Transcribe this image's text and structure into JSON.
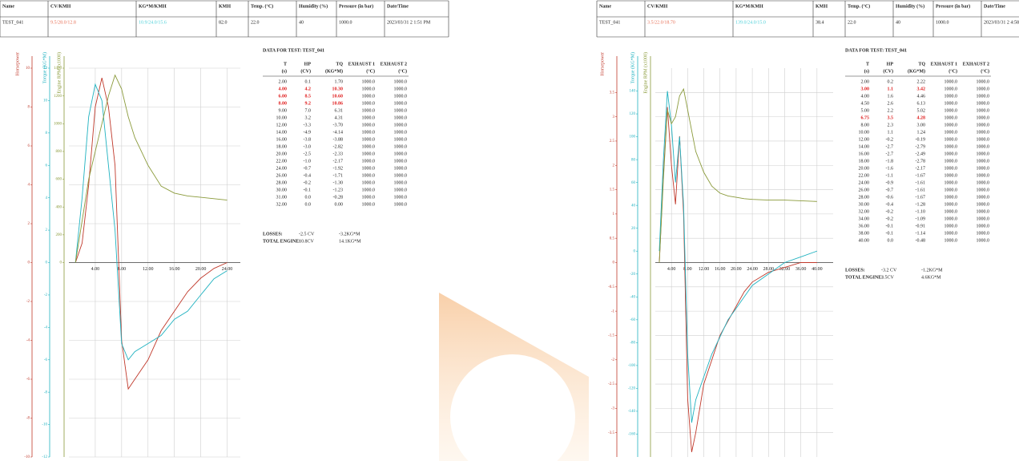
{
  "reports": [
    {
      "header": {
        "columns": [
          "Name",
          "CV/KMH",
          "KG*M/KMH",
          "KMH",
          "Temp. (°C)",
          "Humidity (%)",
          "Pressure (in bar)",
          "Date/Time"
        ],
        "values": [
          "TEST_041",
          "9.5/28.0/12.8",
          "10.9/24.0/15.6",
          "82.0",
          "22.0",
          "40",
          "1000.0",
          "2023/03/31 2 1:51 PM"
        ],
        "colored_values": [
          {
            "index": 1,
            "color": "#e8735a"
          },
          {
            "index": 2,
            "color": "#4fd1d9"
          }
        ]
      },
      "table": {
        "title": "DATA FOR TEST: TEST_041",
        "headers": [
          [
            "T",
            "(s)"
          ],
          [
            "HP",
            "(CV)"
          ],
          [
            "TQ",
            "(KG*M)"
          ],
          [
            "EXHAUST 1",
            "(°C)"
          ],
          [
            "EXHAUST 2",
            "(°C)"
          ]
        ],
        "rows": [
          [
            "2.00",
            "0.1",
            "1.70",
            "1000.0",
            "1000.0"
          ],
          [
            "4.00",
            "4.2",
            "10.30",
            "1000.0",
            "1000.0"
          ],
          [
            "6.00",
            "8.5",
            "10.60",
            "1000.0",
            "1000.0"
          ],
          [
            "8.00",
            "9.2",
            "10.86",
            "1000.0",
            "1000.0"
          ],
          [
            "9.00",
            "7.0",
            "6.31",
            "1000.0",
            "1000.0"
          ],
          [
            "10.00",
            "3.2",
            "4.31",
            "1000.0",
            "1000.0"
          ],
          [
            "12.00",
            "-3.3",
            "-3.70",
            "1000.0",
            "1000.0"
          ],
          [
            "14.00",
            "-4.9",
            "-4.14",
            "1000.0",
            "1000.0"
          ],
          [
            "16.00",
            "-3.8",
            "-3.88",
            "1000.0",
            "1000.0"
          ],
          [
            "18.00",
            "-3.0",
            "-2.82",
            "1000.0",
            "1000.0"
          ],
          [
            "20.00",
            "-2.5",
            "-2.33",
            "1000.0",
            "1000.0"
          ],
          [
            "22.00",
            "-1.0",
            "-2.17",
            "1000.0",
            "1000.0"
          ],
          [
            "24.00",
            "-0.7",
            "-1.92",
            "1000.0",
            "1000.0"
          ],
          [
            "26.00",
            "-0.4",
            "-1.71",
            "1000.0",
            "1000.0"
          ],
          [
            "28.00",
            "-0.2",
            "-1.30",
            "1000.0",
            "1000.0"
          ],
          [
            "30.00",
            "-0.1",
            "-1.23",
            "1000.0",
            "1000.0"
          ],
          [
            "31.00",
            "0.0",
            "-0.28",
            "1000.0",
            "1000.0"
          ],
          [
            "32.00",
            "0.0",
            "0.00",
            "1000.0",
            "1000.0"
          ]
        ],
        "highlight_rows": [
          1,
          2,
          3
        ],
        "highlight_color": "#e02020"
      },
      "summary": [
        [
          "LOSSES:",
          "-2.5 CV",
          "-3.2KG*M"
        ],
        [
          "TOTAL ENGINE:",
          "10.8CV",
          "14.1KG*M"
        ]
      ]
    },
    {
      "header": {
        "columns": [
          "Name",
          "CV/KMH",
          "KG*M/KMH",
          "KMH",
          "Temp. (°C)",
          "Humidity (%)",
          "Pressure (in bar)",
          "Date/Time"
        ],
        "values": [
          "TEST_041",
          "3.5/22.0/18.70",
          "139.0/24.0/15.0",
          "38.4",
          "22.0",
          "40",
          "1000.0",
          "2023/03/31 2 4:58 PM"
        ],
        "colored_values": [
          {
            "index": 1,
            "color": "#e8735a"
          },
          {
            "index": 2,
            "color": "#4fd1d9"
          }
        ]
      },
      "table": {
        "title": "DATA FOR TEST: TEST_041",
        "headers": [
          [
            "T",
            "(s)"
          ],
          [
            "HP",
            "(CV)"
          ],
          [
            "TQ",
            "(KG*M)"
          ],
          [
            "EXHAUST 1",
            "(°C)"
          ],
          [
            "EXHAUST 2",
            "(°C)"
          ]
        ],
        "rows": [
          [
            "2.00",
            "0.2",
            "2.22",
            "1000.0",
            "1000.0"
          ],
          [
            "3.00",
            "1.1",
            "3.42",
            "1000.0",
            "1000.0"
          ],
          [
            "4.00",
            "1.6",
            "4.46",
            "1000.0",
            "1000.0"
          ],
          [
            "4.50",
            "2.6",
            "6.13",
            "1000.0",
            "1000.0"
          ],
          [
            "5.00",
            "2.2",
            "5.02",
            "1000.0",
            "1000.0"
          ],
          [
            "6.75",
            "3.5",
            "4.28",
            "1000.0",
            "1000.0"
          ],
          [
            "8.00",
            "2.3",
            "3.00",
            "1000.0",
            "1000.0"
          ],
          [
            "10.00",
            "1.1",
            "1.24",
            "1000.0",
            "1000.0"
          ],
          [
            "12.00",
            "-0.2",
            "-0.19",
            "1000.0",
            "1000.0"
          ],
          [
            "14.00",
            "-2.7",
            "-2.79",
            "1000.0",
            "1000.0"
          ],
          [
            "16.00",
            "-2.7",
            "-2.49",
            "1000.0",
            "1000.0"
          ],
          [
            "18.00",
            "-1.8",
            "-2.78",
            "1000.0",
            "1000.0"
          ],
          [
            "20.00",
            "-1.6",
            "-2.17",
            "1000.0",
            "1000.0"
          ],
          [
            "22.00",
            "-1.1",
            "-1.67",
            "1000.0",
            "1000.0"
          ],
          [
            "24.00",
            "-0.9",
            "-1.61",
            "1000.0",
            "1000.0"
          ],
          [
            "26.00",
            "-0.7",
            "-1.61",
            "1000.0",
            "1000.0"
          ],
          [
            "28.00",
            "-0.6",
            "-1.67",
            "1000.0",
            "1000.0"
          ],
          [
            "30.00",
            "-0.4",
            "-1.28",
            "1000.0",
            "1000.0"
          ],
          [
            "32.00",
            "-0.2",
            "-1.10",
            "1000.0",
            "1000.0"
          ],
          [
            "34.00",
            "-0.2",
            "-1.09",
            "1000.0",
            "1000.0"
          ],
          [
            "36.00",
            "-0.1",
            "-0.91",
            "1000.0",
            "1000.0"
          ],
          [
            "38.00",
            "-0.1",
            "-1.14",
            "1000.0",
            "1000.0"
          ],
          [
            "40.00",
            "0.0",
            "-0.48",
            "1000.0",
            "1000.0"
          ]
        ],
        "highlight_rows": [
          1,
          5
        ],
        "highlight_color": "#e02020"
      },
      "summary": [
        [
          "LOSSES:",
          "-3.2 CV",
          "-1.2KG*M"
        ],
        [
          "TOTAL ENGINE:",
          "3.5CV",
          "4.6KG*M"
        ]
      ]
    }
  ],
  "chart_data": [
    {
      "type": "line",
      "grid": true,
      "x": [
        1,
        2,
        3,
        4,
        5,
        6,
        7,
        8,
        9,
        10,
        12,
        14,
        16,
        18,
        20,
        22,
        24
      ],
      "xlim": [
        0,
        26
      ],
      "xticks": [
        {
          "value": 4,
          "label": "4.00"
        },
        {
          "value": 8,
          "label": "8.00"
        },
        {
          "value": 12,
          "label": "12.00"
        },
        {
          "value": 16,
          "label": "16.00"
        },
        {
          "value": 20,
          "label": "20.00"
        },
        {
          "value": 24,
          "label": "24.00"
        }
      ],
      "axes": [
        {
          "title": "Horsepower",
          "color": "#c0392b",
          "lim": [
            -10,
            10
          ],
          "ticks": [
            -10,
            -8,
            -6,
            -4,
            -2,
            0,
            2,
            4,
            6,
            8,
            10
          ]
        },
        {
          "title": "Torque (KG*M)",
          "color": "#20b2c0",
          "lim": [
            -12,
            12
          ],
          "ticks": [
            -12,
            -10,
            -8,
            -6,
            -4,
            -2,
            0,
            2,
            4,
            6,
            8,
            10,
            12
          ]
        },
        {
          "title": "Engine RPM (x1000)",
          "color": "#8a9a3a",
          "lim": [
            -1400,
            1400
          ],
          "ticks": [
            0,
            200,
            400,
            600,
            800,
            1000,
            1200,
            1400
          ]
        }
      ],
      "series": [
        {
          "color": "#c0392b",
          "axis": 0,
          "values": [
            0,
            1,
            4,
            8,
            9.5,
            8,
            5,
            -4,
            -6.5,
            -6,
            -5,
            -3.5,
            -2.5,
            -1.5,
            -0.8,
            -0.3,
            0
          ]
        },
        {
          "color": "#20b2c0",
          "axis": 1,
          "values": [
            0,
            4,
            9,
            11,
            10,
            6,
            2,
            -5,
            -6,
            -5.5,
            -5,
            -4.5,
            -3.5,
            -3,
            -2,
            -1,
            -0.5
          ]
        },
        {
          "color": "#8a9a3a",
          "axis": 2,
          "values": [
            0,
            300,
            600,
            800,
            1000,
            1200,
            1350,
            1250,
            1050,
            900,
            700,
            550,
            500,
            480,
            470,
            460,
            450
          ]
        }
      ]
    },
    {
      "type": "line",
      "grid": true,
      "x": [
        1,
        2,
        3,
        4,
        5,
        6,
        7,
        8,
        9,
        10,
        12,
        14,
        16,
        18,
        20,
        22,
        24,
        28,
        32,
        36,
        40
      ],
      "xlim": [
        0,
        44
      ],
      "xticks": [
        {
          "value": 4,
          "label": "4.00"
        },
        {
          "value": 8,
          "label": "8.00"
        },
        {
          "value": 12,
          "label": "12.00"
        },
        {
          "value": 16,
          "label": "16.00"
        },
        {
          "value": 20,
          "label": "20.00"
        },
        {
          "value": 24,
          "label": "24.00"
        },
        {
          "value": 28,
          "label": "28.00"
        },
        {
          "value": 32,
          "label": "32.00"
        },
        {
          "value": 36,
          "label": "36.00"
        },
        {
          "value": 40,
          "label": "40.00"
        }
      ],
      "axes": [
        {
          "title": "Horsepower",
          "color": "#c0392b",
          "lim": [
            -4,
            4
          ],
          "ticks": [
            -3.5,
            -3,
            -2.5,
            -2,
            -1.5,
            -1,
            -0.5,
            0,
            0.5,
            1,
            1.5,
            2,
            2.5,
            3,
            3.5
          ]
        },
        {
          "title": "Torque (KG*M)",
          "color": "#20b2c0",
          "lim": [
            -180,
            160
          ],
          "ticks": [
            -160,
            -140,
            -120,
            -100,
            -80,
            -60,
            -40,
            -20,
            0,
            20,
            40,
            60,
            80,
            100,
            120,
            140
          ]
        },
        {
          "title": "Engine RPM (x1000)",
          "color": "#8a9a3a",
          "lim": [
            -1400,
            1400
          ],
          "ticks": []
        }
      ],
      "series": [
        {
          "color": "#c0392b",
          "axis": 0,
          "values": [
            0,
            1.8,
            3.2,
            2,
            1.2,
            2.6,
            1,
            -2.8,
            -3.9,
            -3.5,
            -2.5,
            -2,
            -1.5,
            -1.2,
            -0.9,
            -0.6,
            -0.4,
            -0.2,
            -0.1,
            0,
            0
          ]
        },
        {
          "color": "#20b2c0",
          "axis": 1,
          "values": [
            0,
            80,
            140,
            110,
            60,
            100,
            40,
            -90,
            -150,
            -130,
            -110,
            -90,
            -75,
            -60,
            -50,
            -40,
            -30,
            -20,
            -10,
            -5,
            0
          ]
        },
        {
          "color": "#8a9a3a",
          "axis": 2,
          "values": [
            0,
            600,
            1100,
            1000,
            1050,
            1200,
            1250,
            1100,
            950,
            800,
            650,
            550,
            500,
            480,
            470,
            460,
            455,
            450,
            450,
            445,
            440
          ]
        }
      ]
    }
  ]
}
